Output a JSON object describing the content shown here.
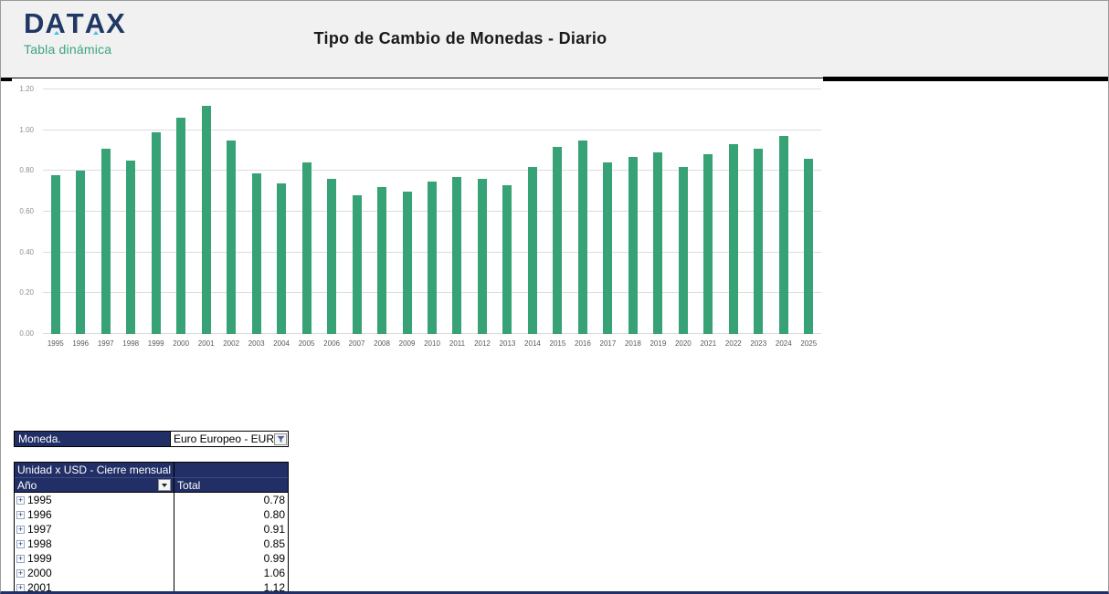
{
  "colors": {
    "navy": "#212F66",
    "bar": "#36A276",
    "logo-navy": "#1F3864",
    "logo-green": "#3BA47D",
    "logo-accent": "#45C0E8",
    "header-bg": "#F1F1F1",
    "grid": "#DCDCDC"
  },
  "header": {
    "logo": {
      "brand": "DATAX",
      "subtitle": "Tabla dinámica"
    },
    "title": "Tipo de Cambio de Monedas - Diario"
  },
  "chart_data": {
    "type": "bar",
    "title": "Tipo de Cambio de Monedas - Diario",
    "xlabel": "",
    "ylabel": "",
    "ylim": [
      0,
      1.2
    ],
    "ytick_step": 0.2,
    "grid": true,
    "legend_position": "none",
    "bar_color": "#36A276",
    "categories": [
      "1995",
      "1996",
      "1997",
      "1998",
      "1999",
      "2000",
      "2001",
      "2002",
      "2003",
      "2004",
      "2005",
      "2006",
      "2007",
      "2008",
      "2009",
      "2010",
      "2011",
      "2012",
      "2013",
      "2014",
      "2015",
      "2016",
      "2017",
      "2018",
      "2019",
      "2020",
      "2021",
      "2022",
      "2023",
      "2024",
      "2025"
    ],
    "values": [
      0.78,
      0.8,
      0.91,
      0.85,
      0.99,
      1.06,
      1.12,
      0.95,
      0.79,
      0.74,
      0.84,
      0.76,
      0.68,
      0.72,
      0.7,
      0.75,
      0.77,
      0.76,
      0.73,
      0.82,
      0.92,
      0.95,
      0.84,
      0.87,
      0.89,
      0.82,
      0.88,
      0.93,
      0.91,
      0.97,
      0.86
    ]
  },
  "filter": {
    "label": "Moneda.",
    "value": "Euro Europeo - EUR"
  },
  "pivot": {
    "title": "Unidad x USD -  Cierre mensual",
    "row_header": "Año",
    "value_header": "Total",
    "rows": [
      {
        "year": "1995",
        "total": "0.78"
      },
      {
        "year": "1996",
        "total": "0.80"
      },
      {
        "year": "1997",
        "total": "0.91"
      },
      {
        "year": "1998",
        "total": "0.85"
      },
      {
        "year": "1999",
        "total": "0.99"
      },
      {
        "year": "2000",
        "total": "1.06"
      },
      {
        "year": "2001",
        "total": "1.12"
      }
    ]
  }
}
